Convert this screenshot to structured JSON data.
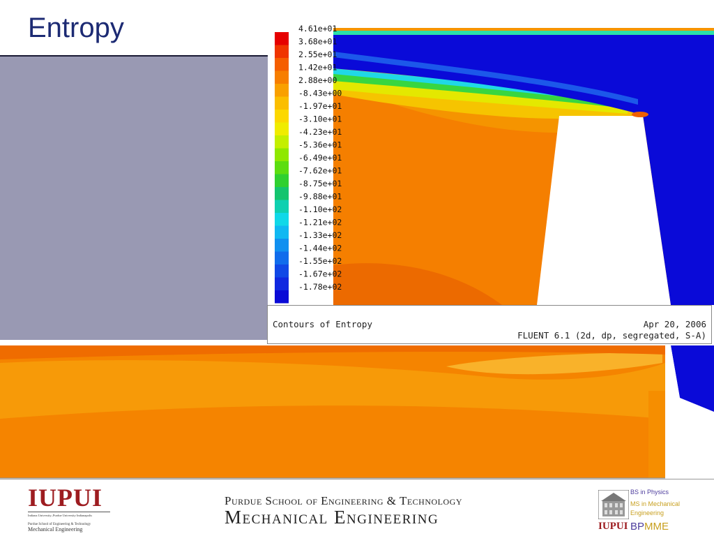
{
  "slide": {
    "title": "Entropy"
  },
  "legend": {
    "labels": [
      "4.61e+01",
      "3.68e+01",
      "2.55e+01",
      "1.42e+01",
      "2.88e+00",
      "-8.43e+00",
      "-1.97e+01",
      "-3.10e+01",
      "-4.23e+01",
      "-5.36e+01",
      "-6.49e+01",
      "-7.62e+01",
      "-8.75e+01",
      "-9.88e+01",
      "-1.10e+02",
      "-1.21e+02",
      "-1.33e+02",
      "-1.44e+02",
      "-1.55e+02",
      "-1.67e+02",
      "-1.78e+02"
    ],
    "colors": [
      "#e60000",
      "#f03500",
      "#f55e00",
      "#f77e00",
      "#f9a000",
      "#fbbe00",
      "#fcd800",
      "#f0ec00",
      "#c4ef00",
      "#8fe800",
      "#5cdd10",
      "#2fd030",
      "#14c46e",
      "#0fd0b0",
      "#10d8e8",
      "#10b8f2",
      "#1090f0",
      "#106cec",
      "#1048e6",
      "#1028e0",
      "#0a0ad6"
    ]
  },
  "plot_caption": {
    "left": "Contours of Entropy",
    "date": "Apr 20, 2006",
    "software": "FLUENT 6.1 (2d, dp, segregated, S-A)"
  },
  "footer": {
    "iupui": {
      "logo": "IUPUI",
      "line1": "Indiana University–Purdue University Indianapolis",
      "line2": "Purdue School of Engineering & Technology",
      "line3": "Mechanical Engineering"
    },
    "school": {
      "line1": "Purdue School of Engineering & Technology",
      "line2": "Mechanical Engineering"
    },
    "program": {
      "bs": "BS in Physics",
      "ms_line1": "MS in Mechanical",
      "ms_line2": "Engineering",
      "logo": "IUPUI",
      "bp": "BP",
      "mme": "MME"
    }
  }
}
